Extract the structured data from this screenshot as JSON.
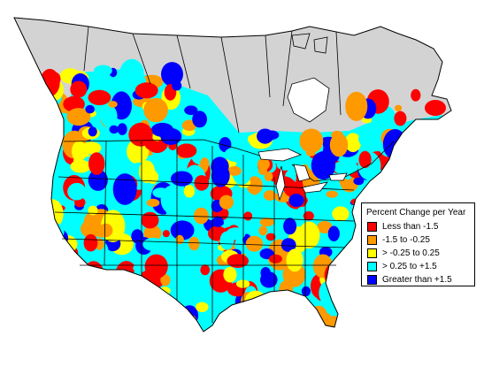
{
  "legend": {
    "title": "Percent Change per Year",
    "items": [
      {
        "label": "Less than -1.5",
        "color": "#ff0000"
      },
      {
        "label": "-1.5 to -0.25",
        "color": "#ff9900"
      },
      {
        "label": "> -0.25 to 0.25",
        "color": "#ffff00"
      },
      {
        "label": "> 0.25 to +1.5",
        "color": "#00ffff"
      },
      {
        "label": "Greater than +1.5",
        "color": "#0000ff"
      }
    ]
  },
  "map": {
    "no_data_color": "#d3d3d3",
    "outline_color": "#000000"
  }
}
